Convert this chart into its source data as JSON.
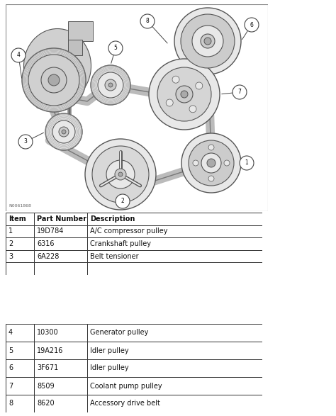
{
  "bg_color": "#ffffff",
  "separator_color": "#b0b0b0",
  "table1_header": [
    "Item",
    "Part Number",
    "Description"
  ],
  "table1_rows": [
    [
      "1",
      "19D784",
      "A/C compressor pulley"
    ],
    [
      "2",
      "6316",
      "Crankshaft pulley"
    ],
    [
      "3",
      "6A228",
      "Belt tensioner"
    ],
    [
      "",
      "",
      ""
    ]
  ],
  "table2_rows": [
    [
      "4",
      "10300",
      "Generator pulley"
    ],
    [
      "5",
      "19A216",
      "Idler pulley"
    ],
    [
      "6",
      "3F671",
      "Idler pulley"
    ],
    [
      "7",
      "8509",
      "Coolant pump pulley"
    ],
    [
      "8",
      "8620",
      "Accessory drive belt"
    ]
  ],
  "diagram_label": "N0061868",
  "table_border_color": "#333333",
  "text_color": "#111111",
  "font_size_table": 7.0,
  "font_size_label_num": 6.5,
  "diagram_bg": "#f5f5f5",
  "line_color": "#555555",
  "belt_color": "#888888",
  "pulley_fill": "#e0e0e0",
  "pulley_edge": "#555555"
}
